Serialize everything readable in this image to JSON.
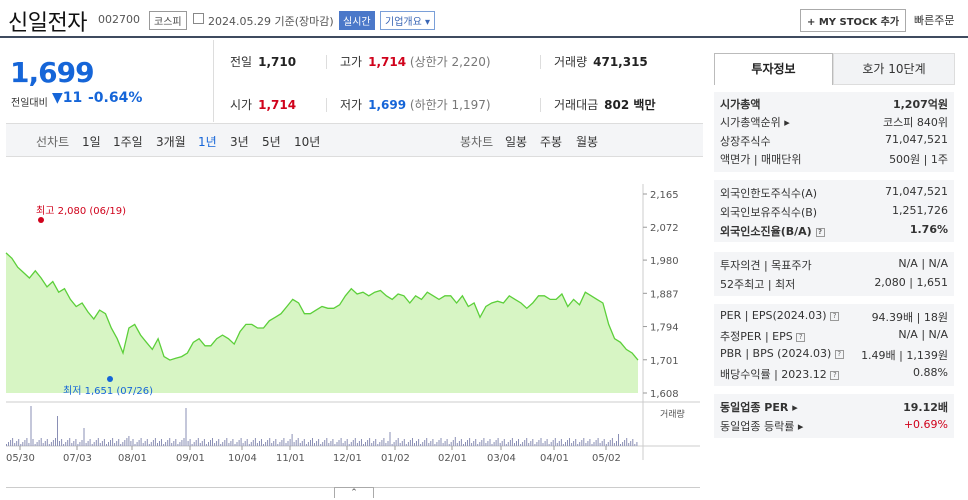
{
  "header": {
    "title": "신일전자",
    "code": "002700",
    "market": "코스피",
    "date": "2024.05.29  기준(장마감)",
    "realtime": "실시간",
    "corp_overview": "기업개요",
    "my_stock": "+ MY STOCK 추가",
    "quick_order": "빠른주문"
  },
  "price": {
    "current": "1,699",
    "prev_label": "전일대비",
    "change": "▼11",
    "change_pct": "-0.64%"
  },
  "quote": {
    "prev_label": "전일",
    "prev": "1,710",
    "high_label": "고가",
    "high": "1,714",
    "upper_label": "(상한가 2,220)",
    "volume_label": "거래량",
    "volume": "471,315",
    "open_label": "시가",
    "open": "1,714",
    "low_label": "저가",
    "low": "1,699",
    "lower_label": "(하한가 1,197)",
    "amount_label": "거래대금",
    "amount": "802 백만"
  },
  "periods": {
    "line_label": "선차트",
    "items": [
      "1일",
      "1주일",
      "3개월",
      "1년",
      "3년",
      "5년",
      "10년"
    ],
    "selected": "1년",
    "candle_label": "봉차트",
    "candle_items": [
      "일봉",
      "주봉",
      "월봉"
    ]
  },
  "chart_data": {
    "type": "area",
    "y_ticks": [
      "2,165",
      "2,072",
      "1,980",
      "1,887",
      "1,794",
      "1,701",
      "1,608"
    ],
    "ylim": [
      1608,
      2165
    ],
    "x_ticks": [
      "05/30",
      "07/03",
      "08/01",
      "09/01",
      "10/04",
      "11/01",
      "12/01",
      "01/02",
      "02/01",
      "03/04",
      "04/01",
      "05/02"
    ],
    "high_annotation": "최고 2,080 (06/19)",
    "low_annotation": "최저 1,651 (07/26)",
    "volume_label": "거래량",
    "series": [
      {
        "values": [
          2000,
          1985,
          1960,
          1945,
          1930,
          1950,
          1930,
          1905,
          1920,
          1890,
          1900,
          1870,
          1850,
          1860,
          1835,
          1815,
          1840,
          1830,
          1790,
          1760,
          1720,
          1790,
          1800,
          1770,
          1750,
          1730,
          1760,
          1710,
          1700,
          1705,
          1710,
          1720,
          1750,
          1760,
          1740,
          1740,
          1760,
          1770,
          1760,
          1745,
          1780,
          1800,
          1800,
          1790,
          1790,
          1810,
          1820,
          1830,
          1850,
          1870,
          1860,
          1830,
          1830,
          1840,
          1850,
          1845,
          1845,
          1855,
          1880,
          1900,
          1885,
          1890,
          1880,
          1890,
          1895,
          1880,
          1870,
          1885,
          1880,
          1860,
          1880,
          1870,
          1890,
          1880,
          1870,
          1880,
          1880,
          1860,
          1880,
          1850,
          1860,
          1820,
          1850,
          1860,
          1865,
          1860,
          1880,
          1870,
          1860,
          1845,
          1860,
          1880,
          1880,
          1870,
          1870,
          1885,
          1850,
          1870,
          1855,
          1890,
          1880,
          1870,
          1860,
          1800,
          1760,
          1750,
          1730,
          1720,
          1700
        ]
      }
    ]
  },
  "tabs": {
    "invest": "투자정보",
    "hoga": "호가 10단계"
  },
  "info": {
    "mcap_label": "시가총액",
    "mcap": "1,207억원",
    "rank_label": "시가총액순위",
    "rank": "코스피 840위",
    "shares_label": "상장주식수",
    "shares": "71,047,521",
    "par_label": "액면가 | 매매단위",
    "par": "500원  |  1주",
    "f_limit_label": "외국인한도주식수(A)",
    "f_limit": "71,047,521",
    "f_hold_label": "외국인보유주식수(B)",
    "f_hold": "1,251,726",
    "f_ratio_label": "외국인소진율(B/A)",
    "f_ratio": "1.76%",
    "opinion_label": "투자의견  |  목표주가",
    "opinion": "N/A  |  N/A",
    "wk52_label": "52주최고  |  최저",
    "wk52": "2,080  |  1,651",
    "per_label": "PER  |  EPS(2024.03)",
    "per": "94.39배  |  18원",
    "eper_label": "추정PER  |  EPS",
    "eper": "N/A  |  N/A",
    "pbr_label": "PBR  |  BPS (2024.03)",
    "pbr": "1.49배  |  1,139원",
    "div_label": "배당수익률  |  2023.12",
    "div": "0.88%",
    "ind_per_label": "동일업종 PER",
    "ind_per": "19.12배",
    "ind_chg_label": "동일업종 등락률",
    "ind_chg": "+0.69%"
  },
  "colors": {
    "accent": "#1565d8",
    "up": "#d0021b",
    "area": "#d7f5c4",
    "line": "#5ccf3a"
  }
}
